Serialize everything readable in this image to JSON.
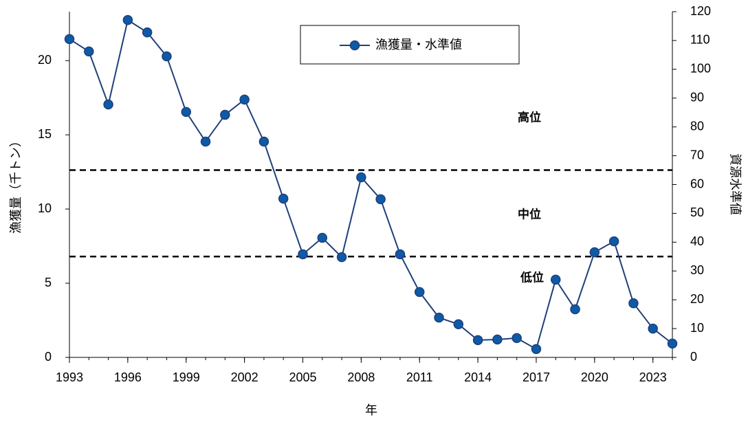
{
  "chart_data": {
    "type": "line",
    "x_label": "年",
    "y_label": "漁獲量（千トン）",
    "y2_label": "資源水準値",
    "x": [
      1993,
      1994,
      1995,
      1996,
      1997,
      1998,
      1999,
      2000,
      2001,
      2002,
      2003,
      2004,
      2005,
      2006,
      2007,
      2008,
      2009,
      2010,
      2011,
      2012,
      2013,
      2014,
      2015,
      2016,
      2017,
      2018,
      2019,
      2020,
      2021,
      2022,
      2023,
      2024
    ],
    "xlim": [
      1993,
      2024
    ],
    "xticks": [
      1993,
      1996,
      1999,
      2002,
      2005,
      2008,
      2011,
      2014,
      2017,
      2020,
      2023
    ],
    "ylim": [
      0,
      23.3
    ],
    "yticks": [
      0,
      5,
      10,
      15,
      20
    ],
    "y2lim": [
      0,
      120
    ],
    "y2ticks": [
      0,
      10,
      20,
      30,
      40,
      50,
      60,
      70,
      80,
      90,
      100,
      110,
      120
    ],
    "series": [
      {
        "name": "漁獲量・水準値",
        "color": "#0e5aa7",
        "axis": "y2",
        "values": [
          110.5,
          106.2,
          87.8,
          117.1,
          112.8,
          104.5,
          85.2,
          74.9,
          84.2,
          89.5,
          74.9,
          55.1,
          35.8,
          41.5,
          34.8,
          62.5,
          54.9,
          35.8,
          22.7,
          13.8,
          11.5,
          6.0,
          6.2,
          6.7,
          2.9,
          27.0,
          16.7,
          36.5,
          40.3,
          18.8,
          10.0,
          4.8
        ]
      }
    ],
    "reference_lines": [
      65,
      35
    ],
    "annotations": [
      "高位",
      "中位",
      "低位"
    ],
    "legend": "top"
  }
}
